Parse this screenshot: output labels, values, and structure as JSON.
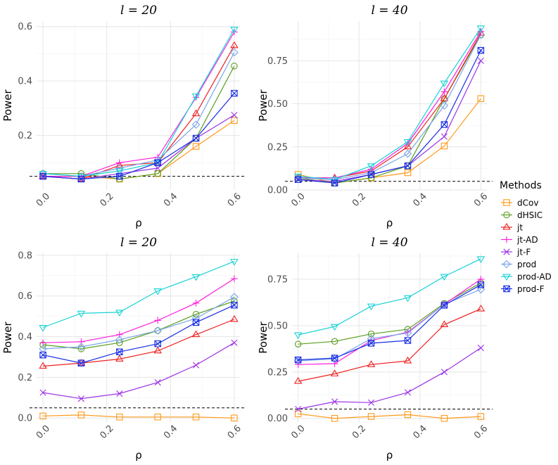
{
  "legend": {
    "title": "Methods",
    "entries": [
      {
        "name": "dCov",
        "color": "#ff9a1a",
        "marker": "square"
      },
      {
        "name": "dHSIC",
        "color": "#5a9e1e",
        "marker": "circle"
      },
      {
        "name": "jt",
        "color": "#ef2020",
        "marker": "triangle"
      },
      {
        "name": "jt-AD",
        "color": "#ff1edb",
        "marker": "plus"
      },
      {
        "name": "jt-F",
        "color": "#9b32e6",
        "marker": "cross"
      },
      {
        "name": "prod",
        "color": "#7aa6e6",
        "marker": "diamond"
      },
      {
        "name": "prod-AD",
        "color": "#18d2d6",
        "marker": "triangle-down"
      },
      {
        "name": "prod-F",
        "color": "#1a2ee6",
        "marker": "square-cross"
      }
    ]
  },
  "chart_data": [
    {
      "type": "line",
      "title": "l = 20",
      "xlabel": "ρ",
      "ylabel": "Power",
      "xlim": [
        -0.02,
        0.62
      ],
      "ylim": [
        0.0,
        0.62
      ],
      "x": [
        0.0,
        0.12,
        0.24,
        0.36,
        0.48,
        0.6
      ],
      "xticks": [
        "0.0",
        "0.2",
        "0.4",
        "0.6"
      ],
      "yticks": [
        "0.2",
        "0.4",
        "0.6"
      ],
      "reference_line": 0.05,
      "series": [
        {
          "name": "dCov",
          "values": [
            0.05,
            0.05,
            0.04,
            0.06,
            0.16,
            0.255
          ]
        },
        {
          "name": "dHSIC",
          "values": [
            0.06,
            0.06,
            0.04,
            0.06,
            0.19,
            0.455
          ]
        },
        {
          "name": "jt",
          "values": [
            0.05,
            0.04,
            0.09,
            0.1,
            0.28,
            0.53
          ]
        },
        {
          "name": "jt-AD",
          "values": [
            0.05,
            0.05,
            0.1,
            0.12,
            0.34,
            0.58
          ]
        },
        {
          "name": "jt-F",
          "values": [
            0.05,
            0.04,
            0.06,
            0.08,
            0.19,
            0.275
          ]
        },
        {
          "name": "prod",
          "values": [
            0.06,
            0.05,
            0.08,
            0.11,
            0.24,
            0.505
          ]
        },
        {
          "name": "prod-AD",
          "values": [
            0.06,
            0.05,
            0.07,
            0.1,
            0.345,
            0.59
          ]
        },
        {
          "name": "prod-F",
          "values": [
            0.05,
            0.04,
            0.05,
            0.1,
            0.19,
            0.355
          ]
        }
      ]
    },
    {
      "type": "line",
      "title": "l = 40",
      "xlabel": "ρ",
      "ylabel": "Power",
      "xlim": [
        -0.02,
        0.62
      ],
      "ylim": [
        0.0,
        0.98
      ],
      "x": [
        0.0,
        0.12,
        0.24,
        0.36,
        0.48,
        0.6
      ],
      "xticks": [
        "0.0",
        "0.2",
        "0.4",
        "0.6"
      ],
      "yticks": [
        "0.00",
        "0.25",
        "0.50",
        "0.75"
      ],
      "reference_line": 0.05,
      "series": [
        {
          "name": "dCov",
          "values": [
            0.09,
            0.04,
            0.07,
            0.1,
            0.255,
            0.53
          ]
        },
        {
          "name": "dHSIC",
          "values": [
            0.07,
            0.04,
            0.07,
            0.14,
            0.53,
            0.9
          ]
        },
        {
          "name": "jt",
          "values": [
            0.07,
            0.07,
            0.11,
            0.25,
            0.53,
            0.91
          ]
        },
        {
          "name": "jt-AD",
          "values": [
            0.07,
            0.07,
            0.12,
            0.27,
            0.57,
            0.92
          ]
        },
        {
          "name": "jt-F",
          "values": [
            0.06,
            0.05,
            0.09,
            0.14,
            0.31,
            0.75
          ]
        },
        {
          "name": "prod",
          "values": [
            0.07,
            0.06,
            0.1,
            0.21,
            0.49,
            0.9
          ]
        },
        {
          "name": "prod-AD",
          "values": [
            0.08,
            0.06,
            0.14,
            0.28,
            0.62,
            0.94
          ]
        },
        {
          "name": "prod-F",
          "values": [
            0.06,
            0.04,
            0.09,
            0.14,
            0.38,
            0.81
          ]
        }
      ]
    },
    {
      "type": "line",
      "title": "l = 20",
      "xlabel": "ρ",
      "ylabel": "Power",
      "xlim": [
        -0.02,
        0.62
      ],
      "ylim": [
        -0.02,
        0.81
      ],
      "x": [
        0.0,
        0.12,
        0.24,
        0.36,
        0.48,
        0.6
      ],
      "xticks": [
        "0.0",
        "0.2",
        "0.4",
        "0.6"
      ],
      "yticks": [
        "0.0",
        "0.2",
        "0.4",
        "0.6",
        "0.8"
      ],
      "reference_line": 0.05,
      "series": [
        {
          "name": "dCov",
          "values": [
            0.01,
            0.015,
            0.005,
            0.005,
            0.005,
            0.0
          ]
        },
        {
          "name": "dHSIC",
          "values": [
            0.36,
            0.34,
            0.37,
            0.43,
            0.51,
            0.575
          ]
        },
        {
          "name": "jt",
          "values": [
            0.255,
            0.27,
            0.29,
            0.33,
            0.41,
            0.485
          ]
        },
        {
          "name": "jt-AD",
          "values": [
            0.37,
            0.375,
            0.41,
            0.48,
            0.565,
            0.685
          ]
        },
        {
          "name": "jt-F",
          "values": [
            0.125,
            0.095,
            0.12,
            0.175,
            0.26,
            0.37
          ]
        },
        {
          "name": "prod",
          "values": [
            0.34,
            0.35,
            0.385,
            0.43,
            0.49,
            0.595
          ]
        },
        {
          "name": "prod-AD",
          "values": [
            0.445,
            0.515,
            0.52,
            0.625,
            0.695,
            0.77
          ]
        },
        {
          "name": "prod-F",
          "values": [
            0.31,
            0.27,
            0.325,
            0.365,
            0.47,
            0.555
          ]
        }
      ]
    },
    {
      "type": "line",
      "title": "l = 40",
      "xlabel": "ρ",
      "ylabel": "Power",
      "xlim": [
        -0.02,
        0.62
      ],
      "ylim": [
        -0.02,
        0.89
      ],
      "x": [
        0.0,
        0.12,
        0.24,
        0.36,
        0.48,
        0.6
      ],
      "xticks": [
        "0.0",
        "0.2",
        "0.4",
        "0.6"
      ],
      "yticks": [
        "0.00",
        "0.25",
        "0.50",
        "0.75"
      ],
      "reference_line": 0.05,
      "series": [
        {
          "name": "dCov",
          "values": [
            0.025,
            0.0,
            0.01,
            0.02,
            0.0,
            0.01
          ]
        },
        {
          "name": "dHSIC",
          "values": [
            0.4,
            0.415,
            0.455,
            0.48,
            0.62,
            0.73
          ]
        },
        {
          "name": "jt",
          "values": [
            0.2,
            0.24,
            0.29,
            0.31,
            0.505,
            0.59
          ]
        },
        {
          "name": "jt-AD",
          "values": [
            0.29,
            0.295,
            0.42,
            0.465,
            0.615,
            0.75
          ]
        },
        {
          "name": "jt-F",
          "values": [
            0.05,
            0.09,
            0.085,
            0.14,
            0.25,
            0.38
          ]
        },
        {
          "name": "prod",
          "values": [
            0.31,
            0.32,
            0.43,
            0.46,
            0.615,
            0.695
          ]
        },
        {
          "name": "prod-AD",
          "values": [
            0.45,
            0.495,
            0.605,
            0.65,
            0.765,
            0.86
          ]
        },
        {
          "name": "prod-F",
          "values": [
            0.315,
            0.325,
            0.405,
            0.42,
            0.61,
            0.72
          ]
        }
      ]
    }
  ]
}
